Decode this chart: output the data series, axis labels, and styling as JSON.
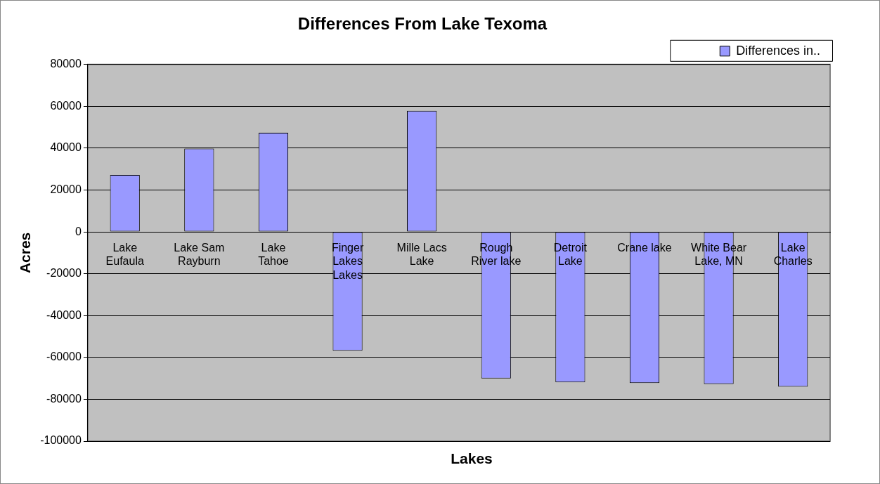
{
  "chart_data": {
    "type": "bar",
    "title": "Differences From Lake Texoma",
    "xlabel": "Lakes",
    "ylabel": "Acres",
    "categories": [
      "Lake Eufaula",
      "Lake Sam Rayburn",
      "Lake Tahoe",
      "Finger Lakes Lakes",
      "Mille Lacs Lake",
      "Rough River lake",
      "Detroit Lake",
      "Crane lake",
      "White Bear Lake, MN",
      "Lake Charles"
    ],
    "series": [
      {
        "name": "Differences in..",
        "color": "#9999ff",
        "values": [
          27200,
          39800,
          47400,
          -56800,
          57900,
          -70000,
          -71900,
          -72200,
          -72700,
          -74000
        ]
      }
    ],
    "ylim": [
      -100000,
      80000
    ],
    "yticks": [
      -100000,
      -80000,
      -60000,
      -40000,
      -20000,
      0,
      20000,
      40000,
      60000,
      80000
    ],
    "grid": "y",
    "legend": "top right"
  }
}
